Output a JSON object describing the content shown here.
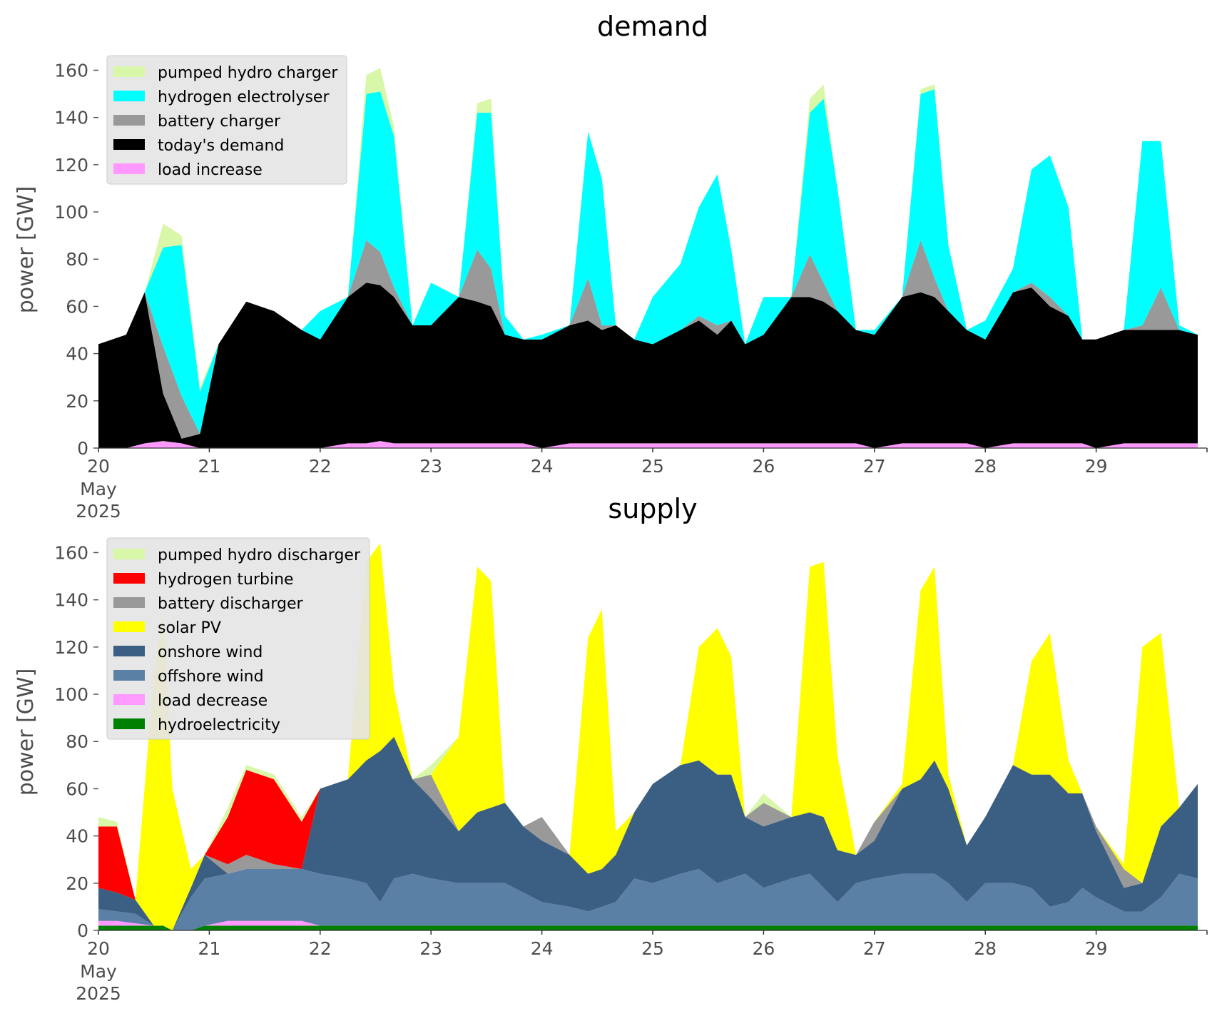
{
  "colors": {
    "pumped_hydro": "#d9f7a8",
    "hydrogen_electrolyser": "#00ffff",
    "battery": "#999999",
    "todays_demand": "#000000",
    "load_change": "#ff99ff",
    "hydrogen_turbine": "#ff0000",
    "solar_pv": "#ffff00",
    "onshore_wind": "#3b5f82",
    "offshore_wind": "#5b80a5",
    "hydroelectricity": "#008000",
    "legend_bg": "#e5e5e5"
  },
  "chart_data": [
    {
      "type": "area",
      "title": "demand",
      "ylabel": "power [GW]",
      "xlabel": "",
      "x_ticks": [
        "20",
        "21",
        "22",
        "23",
        "24",
        "25",
        "26",
        "27",
        "28",
        "29"
      ],
      "x_tick_sublabel": [
        "May",
        "2025"
      ],
      "y_ticks": [
        "0",
        "20",
        "40",
        "60",
        "80",
        "100",
        "120",
        "140",
        "160"
      ],
      "xlim": [
        "2025-05-20 00:00",
        "2025-05-30 00:00"
      ],
      "ylim": [
        0,
        168
      ],
      "grid": false,
      "legend_placement": "top-left",
      "stacked": true,
      "x": [
        "2025-05-20 00:00",
        "2025-05-20 06:00",
        "2025-05-20 10:00",
        "2025-05-20 14:00",
        "2025-05-20 18:00",
        "2025-05-20 22:00",
        "2025-05-21 02:00",
        "2025-05-21 08:00",
        "2025-05-21 14:00",
        "2025-05-21 20:00",
        "2025-05-22 00:00",
        "2025-05-22 06:00",
        "2025-05-22 10:00",
        "2025-05-22 13:00",
        "2025-05-22 16:00",
        "2025-05-22 20:00",
        "2025-05-23 00:00",
        "2025-05-23 06:00",
        "2025-05-23 10:00",
        "2025-05-23 13:00",
        "2025-05-23 16:00",
        "2025-05-23 20:00",
        "2025-05-24 00:00",
        "2025-05-24 06:00",
        "2025-05-24 10:00",
        "2025-05-24 13:00",
        "2025-05-24 16:00",
        "2025-05-24 20:00",
        "2025-05-25 00:00",
        "2025-05-25 06:00",
        "2025-05-25 10:00",
        "2025-05-25 14:00",
        "2025-05-25 17:00",
        "2025-05-25 20:00",
        "2025-05-26 00:00",
        "2025-05-26 06:00",
        "2025-05-26 10:00",
        "2025-05-26 13:00",
        "2025-05-26 16:00",
        "2025-05-26 20:00",
        "2025-05-27 00:00",
        "2025-05-27 06:00",
        "2025-05-27 10:00",
        "2025-05-27 13:00",
        "2025-05-27 16:00",
        "2025-05-27 20:00",
        "2025-05-28 00:00",
        "2025-05-28 06:00",
        "2025-05-28 10:00",
        "2025-05-28 14:00",
        "2025-05-28 18:00",
        "2025-05-28 21:00",
        "2025-05-29 00:00",
        "2025-05-29 06:00",
        "2025-05-29 10:00",
        "2025-05-29 14:00",
        "2025-05-29 18:00",
        "2025-05-29 22:00"
      ],
      "series": [
        {
          "name": "load increase",
          "color": "load_change",
          "values": [
            0,
            0,
            2,
            3,
            2,
            0,
            0,
            0,
            0,
            0,
            0,
            2,
            2,
            3,
            2,
            2,
            2,
            2,
            2,
            2,
            2,
            2,
            0,
            2,
            2,
            2,
            2,
            2,
            2,
            2,
            2,
            2,
            2,
            2,
            2,
            2,
            2,
            2,
            2,
            2,
            0,
            2,
            2,
            2,
            2,
            2,
            0,
            2,
            2,
            2,
            2,
            2,
            0,
            2,
            2,
            2,
            2,
            2
          ]
        },
        {
          "name": "today's demand",
          "color": "todays_demand",
          "values": [
            44,
            48,
            64,
            20,
            2,
            6,
            44,
            62,
            58,
            50,
            46,
            62,
            68,
            66,
            62,
            50,
            50,
            62,
            60,
            58,
            46,
            44,
            46,
            50,
            52,
            48,
            50,
            44,
            42,
            48,
            52,
            46,
            52,
            42,
            46,
            62,
            62,
            60,
            56,
            48,
            48,
            62,
            64,
            62,
            56,
            48,
            46,
            64,
            66,
            58,
            54,
            44,
            46,
            48,
            48,
            48,
            48,
            46
          ]
        },
        {
          "name": "battery charger",
          "color": "battery",
          "values": [
            0,
            0,
            0,
            20,
            18,
            0,
            0,
            0,
            0,
            0,
            0,
            0,
            18,
            14,
            4,
            0,
            0,
            0,
            22,
            16,
            0,
            0,
            0,
            0,
            18,
            2,
            0,
            0,
            0,
            0,
            2,
            4,
            0,
            0,
            0,
            0,
            18,
            8,
            0,
            0,
            0,
            0,
            22,
            8,
            0,
            0,
            0,
            0,
            2,
            4,
            0,
            0,
            0,
            0,
            2,
            18,
            0,
            0
          ]
        },
        {
          "name": "hydrogen electrolyser",
          "color": "hydrogen_electrolyser",
          "values": [
            0,
            0,
            0,
            42,
            64,
            18,
            0,
            0,
            0,
            0,
            12,
            0,
            62,
            68,
            64,
            0,
            18,
            0,
            58,
            66,
            8,
            0,
            2,
            0,
            62,
            62,
            0,
            0,
            20,
            28,
            46,
            64,
            30,
            0,
            16,
            0,
            60,
            78,
            52,
            0,
            2,
            0,
            62,
            80,
            28,
            0,
            8,
            10,
            48,
            60,
            46,
            0,
            0,
            0,
            78,
            62,
            2,
            0
          ]
        },
        {
          "name": "pumped hydro charger",
          "color": "pumped_hydro",
          "values": [
            0,
            0,
            0,
            10,
            4,
            2,
            0,
            0,
            0,
            0,
            0,
            0,
            8,
            10,
            4,
            0,
            0,
            0,
            4,
            6,
            0,
            0,
            0,
            0,
            0,
            0,
            0,
            0,
            0,
            0,
            0,
            0,
            0,
            0,
            0,
            0,
            6,
            6,
            0,
            0,
            0,
            0,
            2,
            2,
            0,
            0,
            0,
            0,
            0,
            0,
            0,
            0,
            0,
            0,
            0,
            0,
            0,
            0
          ]
        }
      ],
      "legend": [
        "pumped hydro charger",
        "hydrogen electrolyser",
        "battery charger",
        "today's demand",
        "load increase"
      ]
    },
    {
      "type": "area",
      "title": "supply",
      "ylabel": "power [GW]",
      "xlabel": "",
      "x_ticks": [
        "20",
        "21",
        "22",
        "23",
        "24",
        "25",
        "26",
        "27",
        "28",
        "29"
      ],
      "x_tick_sublabel": [
        "May",
        "2025"
      ],
      "y_ticks": [
        "0",
        "20",
        "40",
        "60",
        "80",
        "100",
        "120",
        "140",
        "160"
      ],
      "xlim": [
        "2025-05-20 00:00",
        "2025-05-30 00:00"
      ],
      "ylim": [
        0,
        168
      ],
      "grid": false,
      "legend_placement": "top-left",
      "stacked": true,
      "x": [
        "2025-05-20 00:00",
        "2025-05-20 04:00",
        "2025-05-20 08:00",
        "2025-05-20 12:00",
        "2025-05-20 14:00",
        "2025-05-20 16:00",
        "2025-05-20 20:00",
        "2025-05-20 23:00",
        "2025-05-21 04:00",
        "2025-05-21 08:00",
        "2025-05-21 14:00",
        "2025-05-21 20:00",
        "2025-05-22 00:00",
        "2025-05-22 06:00",
        "2025-05-22 10:00",
        "2025-05-22 13:00",
        "2025-05-22 16:00",
        "2025-05-22 20:00",
        "2025-05-23 00:00",
        "2025-05-23 06:00",
        "2025-05-23 10:00",
        "2025-05-23 13:00",
        "2025-05-23 16:00",
        "2025-05-23 20:00",
        "2025-05-24 00:00",
        "2025-05-24 06:00",
        "2025-05-24 10:00",
        "2025-05-24 13:00",
        "2025-05-24 16:00",
        "2025-05-24 20:00",
        "2025-05-25 00:00",
        "2025-05-25 06:00",
        "2025-05-25 10:00",
        "2025-05-25 14:00",
        "2025-05-25 17:00",
        "2025-05-25 20:00",
        "2025-05-26 00:00",
        "2025-05-26 06:00",
        "2025-05-26 10:00",
        "2025-05-26 13:00",
        "2025-05-26 16:00",
        "2025-05-26 20:00",
        "2025-05-27 00:00",
        "2025-05-27 06:00",
        "2025-05-27 10:00",
        "2025-05-27 13:00",
        "2025-05-27 16:00",
        "2025-05-27 20:00",
        "2025-05-28 00:00",
        "2025-05-28 06:00",
        "2025-05-28 10:00",
        "2025-05-28 14:00",
        "2025-05-28 18:00",
        "2025-05-28 21:00",
        "2025-05-29 00:00",
        "2025-05-29 06:00",
        "2025-05-29 10:00",
        "2025-05-29 14:00",
        "2025-05-29 18:00",
        "2025-05-29 22:00"
      ],
      "series": [
        {
          "name": "hydroelectricity",
          "color": "hydroelectricity",
          "values": [
            2,
            2,
            2,
            2,
            2,
            0,
            0,
            2,
            2,
            2,
            2,
            2,
            2,
            2,
            2,
            2,
            2,
            2,
            2,
            2,
            2,
            2,
            2,
            2,
            2,
            2,
            2,
            2,
            2,
            2,
            2,
            2,
            2,
            2,
            2,
            2,
            2,
            2,
            2,
            2,
            2,
            2,
            2,
            2,
            2,
            2,
            2,
            2,
            2,
            2,
            2,
            2,
            2,
            2,
            2,
            2,
            2,
            2,
            2,
            2
          ]
        },
        {
          "name": "load decrease",
          "color": "load_change",
          "values": [
            2,
            2,
            1,
            0,
            0,
            0,
            0,
            0,
            2,
            2,
            2,
            2,
            0,
            0,
            0,
            0,
            0,
            0,
            0,
            0,
            0,
            0,
            0,
            0,
            0,
            0,
            0,
            0,
            0,
            0,
            0,
            0,
            0,
            0,
            0,
            0,
            0,
            0,
            0,
            0,
            0,
            0,
            0,
            0,
            0,
            0,
            0,
            0,
            0,
            0,
            0,
            0,
            0,
            0,
            0,
            0,
            0,
            0,
            0,
            0
          ]
        },
        {
          "name": "offshore wind",
          "color": "offshore_wind",
          "values": [
            5,
            4,
            4,
            0,
            0,
            0,
            14,
            20,
            20,
            22,
            22,
            22,
            22,
            20,
            18,
            10,
            20,
            22,
            20,
            18,
            18,
            18,
            18,
            14,
            10,
            8,
            6,
            8,
            10,
            20,
            18,
            22,
            24,
            18,
            20,
            22,
            16,
            20,
            22,
            16,
            10,
            18,
            20,
            22,
            22,
            22,
            18,
            10,
            18,
            18,
            16,
            8,
            10,
            16,
            12,
            6,
            6,
            12,
            22,
            20
          ]
        },
        {
          "name": "onshore wind",
          "color": "onshore_wind",
          "values": [
            9,
            8,
            6,
            0,
            0,
            0,
            4,
            10,
            0,
            0,
            0,
            0,
            36,
            42,
            52,
            64,
            60,
            40,
            34,
            22,
            30,
            32,
            34,
            28,
            26,
            22,
            16,
            16,
            20,
            28,
            42,
            46,
            46,
            46,
            44,
            24,
            26,
            26,
            26,
            30,
            22,
            12,
            16,
            36,
            40,
            48,
            40,
            24,
            28,
            50,
            48,
            56,
            46,
            40,
            28,
            10,
            12,
            30,
            28,
            40
          ]
        },
        {
          "name": "battery discharger",
          "color": "battery",
          "values": [
            0,
            0,
            0,
            0,
            0,
            0,
            0,
            0,
            4,
            6,
            2,
            0,
            0,
            0,
            0,
            0,
            0,
            0,
            10,
            0,
            0,
            0,
            0,
            0,
            10,
            0,
            0,
            0,
            0,
            0,
            0,
            0,
            0,
            0,
            0,
            0,
            10,
            0,
            0,
            0,
            0,
            0,
            8,
            0,
            0,
            0,
            0,
            0,
            0,
            0,
            0,
            0,
            0,
            0,
            2,
            8,
            0,
            0,
            0,
            0
          ]
        },
        {
          "name": "hydrogen turbine",
          "color": "hydrogen_turbine",
          "values": [
            26,
            28,
            0,
            0,
            0,
            0,
            0,
            0,
            20,
            36,
            36,
            20,
            0,
            0,
            0,
            0,
            0,
            0,
            0,
            0,
            0,
            0,
            0,
            0,
            0,
            0,
            0,
            0,
            0,
            0,
            0,
            0,
            0,
            0,
            0,
            0,
            0,
            0,
            0,
            0,
            0,
            0,
            0,
            0,
            0,
            0,
            0,
            0,
            0,
            0,
            0,
            0,
            0,
            0,
            0,
            0,
            0,
            0,
            0,
            0
          ]
        },
        {
          "name": "solar PV",
          "color": "solar_pv",
          "values": [
            0,
            0,
            0,
            106,
            134,
            60,
            8,
            0,
            0,
            0,
            0,
            0,
            0,
            0,
            84,
            88,
            20,
            0,
            0,
            40,
            104,
            96,
            0,
            0,
            0,
            0,
            100,
            110,
            10,
            0,
            0,
            0,
            48,
            62,
            50,
            0,
            0,
            0,
            104,
            108,
            40,
            0,
            0,
            2,
            80,
            82,
            6,
            0,
            0,
            0,
            48,
            60,
            14,
            0,
            0,
            2,
            100,
            82,
            0,
            0
          ]
        },
        {
          "name": "pumped hydro discharger",
          "color": "pumped_hydro",
          "values": [
            4,
            2,
            0,
            0,
            0,
            0,
            0,
            0,
            4,
            2,
            2,
            2,
            0,
            0,
            0,
            0,
            0,
            0,
            4,
            0,
            0,
            0,
            0,
            0,
            0,
            0,
            0,
            0,
            0,
            0,
            0,
            0,
            0,
            0,
            0,
            0,
            4,
            0,
            0,
            0,
            0,
            0,
            0,
            0,
            0,
            0,
            0,
            0,
            0,
            0,
            0,
            0,
            0,
            0,
            0,
            0,
            0,
            0,
            0,
            0
          ]
        }
      ],
      "legend": [
        "pumped hydro discharger",
        "hydrogen turbine",
        "battery discharger",
        "solar PV",
        "onshore wind",
        "offshore wind",
        "load decrease",
        "hydroelectricity"
      ]
    }
  ]
}
